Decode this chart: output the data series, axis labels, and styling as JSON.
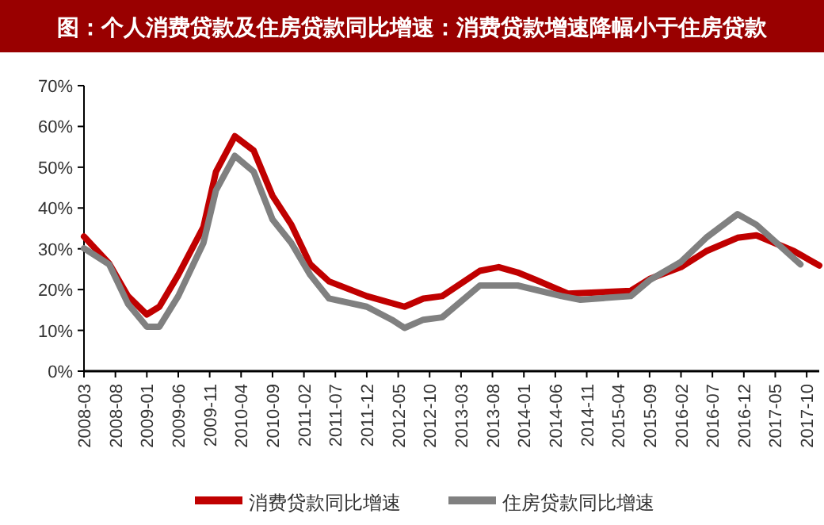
{
  "chart_data": {
    "type": "line",
    "title": "图：个人消费贷款及住房贷款同比增速：消费贷款增速降幅小于住房贷款",
    "xlim": [
      "2008-03",
      "2017-12"
    ],
    "xticks": [
      "2008-03",
      "2008-08",
      "2009-01",
      "2009-06",
      "2009-11",
      "2010-04",
      "2010-09",
      "2011-02",
      "2011-07",
      "2011-12",
      "2012-05",
      "2012-10",
      "2013-03",
      "2013-08",
      "2014-01",
      "2014-06",
      "2014-11",
      "2015-04",
      "2015-09",
      "2016-02",
      "2016-07",
      "2016-12",
      "2017-05",
      "2017-10"
    ],
    "ylim": [
      0,
      70
    ],
    "yticks": [
      {
        "value": 0,
        "label": "0%"
      },
      {
        "value": 10,
        "label": "10%"
      },
      {
        "value": 20,
        "label": "20%"
      },
      {
        "value": 30,
        "label": "30%"
      },
      {
        "value": 40,
        "label": "40%"
      },
      {
        "value": 50,
        "label": "50%"
      },
      {
        "value": 60,
        "label": "60%"
      },
      {
        "value": 70,
        "label": "70%"
      }
    ],
    "legend": "bottom",
    "marker": "none",
    "line_style": "solid",
    "grid": false,
    "series": [
      {
        "name": "消费贷款同比增速",
        "color": "#c00000",
        "x": [
          "2008-03",
          "2008-07",
          "2008-10",
          "2009-01",
          "2009-03",
          "2009-06",
          "2009-10",
          "2009-12",
          "2010-03",
          "2010-06",
          "2010-09",
          "2010-12",
          "2011-03",
          "2011-06",
          "2011-12",
          "2012-06",
          "2012-09",
          "2012-12",
          "2013-06",
          "2013-09",
          "2013-12",
          "2014-03",
          "2014-08",
          "2015-06",
          "2015-09",
          "2016-02",
          "2016-06",
          "2016-11",
          "2017-02",
          "2017-08",
          "2017-12"
        ],
        "values": [
          33,
          26.4,
          18.4,
          13.9,
          15.8,
          23.6,
          35.3,
          48.9,
          57.6,
          54.1,
          43,
          35.9,
          26.2,
          22,
          18.4,
          15.8,
          17.8,
          18.4,
          24.6,
          25.5,
          24.2,
          22.3,
          19,
          19.7,
          22.6,
          25.5,
          29.4,
          32.7,
          33.3,
          29.4,
          25.9
        ]
      },
      {
        "name": "住房贷款同比增速",
        "color": "#808080",
        "x": [
          "2008-03",
          "2008-07",
          "2008-10",
          "2009-01",
          "2009-03",
          "2009-06",
          "2009-10",
          "2009-12",
          "2010-03",
          "2010-06",
          "2010-09",
          "2010-12",
          "2011-03",
          "2011-06",
          "2011-12",
          "2012-04",
          "2012-06",
          "2012-09",
          "2012-12",
          "2013-06",
          "2013-12",
          "2014-07",
          "2014-10",
          "2015-06",
          "2015-09",
          "2016-02",
          "2016-06",
          "2016-11",
          "2017-02",
          "2017-09"
        ],
        "values": [
          30.1,
          26.2,
          16.5,
          10.9,
          10.9,
          18.4,
          31.4,
          44.3,
          52.8,
          48.9,
          37.2,
          31.4,
          23.6,
          17.8,
          15.8,
          12.6,
          10.6,
          12.6,
          13.2,
          21,
          21,
          18.4,
          17.5,
          18.4,
          22.3,
          26.8,
          32.7,
          38.5,
          35.9,
          26.2
        ]
      }
    ]
  }
}
